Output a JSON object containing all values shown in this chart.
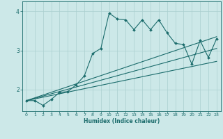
{
  "xlabel": "Humidex (Indice chaleur)",
  "xlim": [
    -0.5,
    23.5
  ],
  "ylim": [
    1.45,
    4.25
  ],
  "yticks": [
    2,
    3,
    4
  ],
  "xticks": [
    0,
    1,
    2,
    3,
    4,
    5,
    6,
    7,
    8,
    9,
    10,
    11,
    12,
    13,
    14,
    15,
    16,
    17,
    18,
    19,
    20,
    21,
    22,
    23
  ],
  "bg_color": "#cce8e8",
  "line_color": "#1a6b6b",
  "grid_color": "#aacfcf",
  "line1_x": [
    0,
    1,
    2,
    3,
    4,
    5,
    6,
    7,
    8,
    9,
    10,
    11,
    12,
    13,
    14,
    15,
    16,
    17,
    18,
    19,
    20,
    21,
    22,
    23
  ],
  "line1_y": [
    1.72,
    1.72,
    1.6,
    1.75,
    1.93,
    1.95,
    2.12,
    2.35,
    2.92,
    3.05,
    3.95,
    3.8,
    3.78,
    3.53,
    3.78,
    3.53,
    3.78,
    3.45,
    3.18,
    3.15,
    2.65,
    3.25,
    2.82,
    3.3
  ],
  "line2_x": [
    0,
    23
  ],
  "line2_y": [
    1.72,
    3.35
  ],
  "line3_x": [
    0,
    23
  ],
  "line3_y": [
    1.72,
    3.05
  ],
  "line4_x": [
    0,
    23
  ],
  "line4_y": [
    1.72,
    2.72
  ]
}
